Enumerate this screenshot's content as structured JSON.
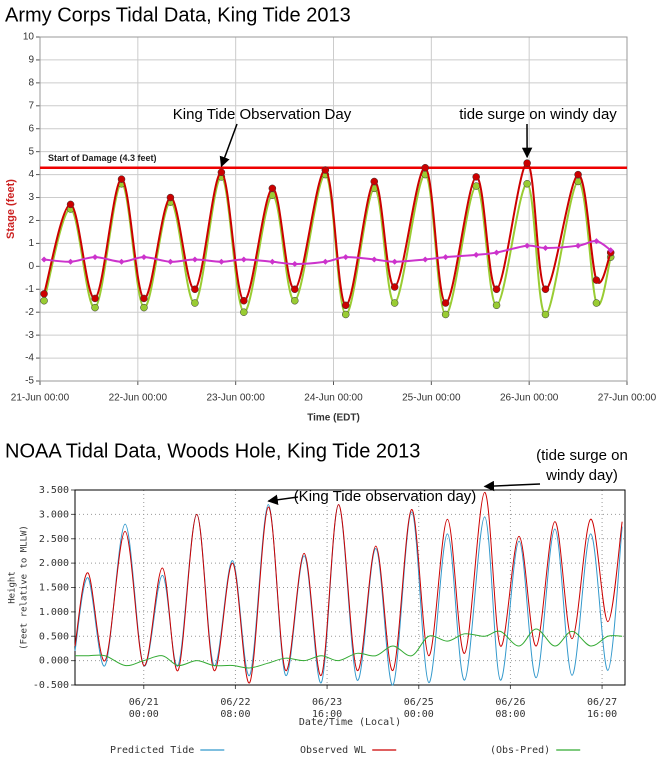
{
  "chart_data": [
    {
      "type": "line",
      "title": "Army Corps Tidal Data, King Tide 2013",
      "xlabel": "Time (EDT)",
      "ylabel": [
        "Stage (feet)"
      ],
      "x": [
        "21-Jun 01:00",
        "21-Jun 07:30",
        "21-Jun 13:30",
        "21-Jun 20:00",
        "22-Jun 01:30",
        "22-Jun 08:00",
        "22-Jun 14:00",
        "22-Jun 20:30",
        "23-Jun 02:00",
        "23-Jun 09:00",
        "23-Jun 14:30",
        "23-Jun 22:00",
        "24-Jun 03:00",
        "24-Jun 10:00",
        "24-Jun 15:00",
        "24-Jun 22:30",
        "25-Jun 03:30",
        "25-Jun 11:00",
        "25-Jun 16:00",
        "25-Jun 23:30",
        "26-Jun 04:00",
        "26-Jun 12:00",
        "26-Jun 16:30",
        "26-Jun 20:00"
      ],
      "series": [
        {
          "color": "#99cc33",
          "marker": "circle",
          "values": [
            -1.5,
            2.5,
            -1.8,
            3.6,
            -1.8,
            2.8,
            -1.6,
            3.9,
            -2.0,
            3.1,
            -1.5,
            4.0,
            -2.1,
            3.4,
            -1.6,
            4.0,
            -2.1,
            3.5,
            -1.7,
            3.6,
            -2.1,
            3.7,
            -1.6,
            0.4
          ]
        },
        {
          "color": "#cc0000",
          "marker": "circle",
          "values": [
            -1.2,
            2.7,
            -1.4,
            3.8,
            -1.4,
            3.0,
            -1.0,
            4.1,
            -1.5,
            3.4,
            -1.0,
            4.2,
            -1.7,
            3.7,
            -0.9,
            4.3,
            -1.6,
            3.9,
            -1.0,
            4.5,
            -1.0,
            4.0,
            -0.6,
            0.6
          ]
        },
        {
          "color": "#cc33cc",
          "marker": "diamond",
          "values": [
            0.3,
            0.2,
            0.4,
            0.2,
            0.4,
            0.2,
            0.3,
            0.2,
            0.3,
            0.2,
            0.1,
            0.2,
            0.4,
            0.3,
            0.2,
            0.3,
            0.4,
            0.5,
            0.6,
            0.9,
            0.8,
            0.9,
            1.1,
            0.7
          ]
        }
      ],
      "xlim": [
        "21-Jun 00:00",
        "27-Jun 00:00"
      ],
      "xticks": [
        "21-Jun 00:00",
        "22-Jun 00:00",
        "23-Jun 00:00",
        "24-Jun 00:00",
        "25-Jun 00:00",
        "26-Jun 00:00",
        "27-Jun 00:00"
      ],
      "ylim": [
        -5,
        10
      ],
      "yticks": [
        -5,
        -4,
        -3,
        -2,
        -1,
        0,
        1,
        2,
        3,
        4,
        5,
        6,
        7,
        8,
        9,
        10
      ],
      "grid": true,
      "threshold": {
        "value": 4.3,
        "label": "Start of Damage (4.3  feet)",
        "color": "#ee0000"
      },
      "annotations": [
        {
          "text": [
            "King Tide Observation Day"
          ],
          "x": "22-Jun 20:30",
          "y": 4.1
        },
        {
          "text": [
            "tide surge on windy day"
          ],
          "x": "25-Jun 23:30",
          "y": 4.5
        }
      ]
    },
    {
      "type": "line",
      "title": "NOAA Tidal Data, Woods Hole, King Tide 2013",
      "xlabel": "Date/Time (Local)",
      "ylabel": [
        "Height",
        "(Feet relative to MLLW)"
      ],
      "x": [
        "06/20 00:00",
        "06/20 04:30",
        "06/20 10:30",
        "06/20 17:30",
        "06/21 00:00",
        "06/21 06:30",
        "06/21 12:00",
        "06/21 18:30",
        "06/22 00:30",
        "06/22 07:00",
        "06/22 13:00",
        "06/22 19:30",
        "06/23 01:30",
        "06/23 08:00",
        "06/23 14:00",
        "06/23 20:00",
        "06/24 02:30",
        "06/24 09:00",
        "06/24 15:00",
        "06/24 21:30",
        "06/25 03:30",
        "06/25 10:00",
        "06/25 16:00",
        "06/25 23:00",
        "06/26 04:30",
        "06/26 11:00",
        "06/26 17:00",
        "06/26 23:30",
        "06/27 05:30",
        "06/27 12:00",
        "06/27 18:00",
        "06/27 23:00"
      ],
      "series": [
        {
          "name": "Predicted Tide",
          "color": "#3399cc",
          "values": [
            0.2,
            1.7,
            -0.1,
            2.8,
            -0.1,
            1.75,
            -0.1,
            3.0,
            -0.1,
            2.05,
            -0.3,
            3.2,
            -0.3,
            2.15,
            -0.45,
            3.2,
            -0.4,
            2.3,
            -0.5,
            3.05,
            -0.45,
            2.6,
            -0.4,
            2.95,
            -0.4,
            2.45,
            -0.35,
            2.7,
            -0.3,
            2.6,
            -0.2,
            2.75
          ]
        },
        {
          "name": "Observed WL",
          "color": "#cc0000",
          "values": [
            0.3,
            1.8,
            0.0,
            2.65,
            -0.1,
            1.9,
            -0.2,
            3.0,
            -0.2,
            2.0,
            -0.45,
            3.15,
            -0.2,
            2.2,
            -0.3,
            3.2,
            -0.2,
            2.35,
            -0.2,
            3.1,
            0.1,
            2.9,
            0.15,
            3.45,
            0.3,
            2.55,
            0.3,
            2.85,
            0.45,
            2.9,
            0.8,
            2.85
          ]
        },
        {
          "name": "(Obs-Pred)",
          "color": "#33aa33",
          "values": [
            0.1,
            0.1,
            0.1,
            -0.1,
            0.0,
            0.1,
            -0.1,
            0.0,
            -0.1,
            -0.1,
            -0.15,
            -0.05,
            0.05,
            0.0,
            0.1,
            0.0,
            0.15,
            0.1,
            0.3,
            0.1,
            0.5,
            0.4,
            0.55,
            0.5,
            0.6,
            0.3,
            0.65,
            0.3,
            0.6,
            0.3,
            0.5,
            0.5
          ]
        }
      ],
      "xlim": [
        "06/20 00:00",
        "06/28 00:00"
      ],
      "xticks": [
        "06/21 00:00",
        "06/22 08:00",
        "06/23 16:00",
        "06/25 00:00",
        "06/26 08:00",
        "06/27 16:00"
      ],
      "ylim": [
        -0.5,
        3.5
      ],
      "yticks": [
        {
          "value": -0.5,
          "label": "-0.500"
        },
        {
          "value": 0,
          "label": "0.000"
        },
        {
          "value": 0.5,
          "label": "0.500"
        },
        {
          "value": 1,
          "label": "1.000"
        },
        {
          "value": 1.5,
          "label": "1.500"
        },
        {
          "value": 2,
          "label": "2.000"
        },
        {
          "value": 2.5,
          "label": "2.500"
        },
        {
          "value": 3,
          "label": "3.000"
        },
        {
          "value": 3.5,
          "label": "3.500"
        }
      ],
      "grid": true,
      "legend": "bottom",
      "annotations": [
        {
          "text": [
            "(King Tide observation day)"
          ],
          "x": "06/22 19:30",
          "y": 3.15
        },
        {
          "text": [
            "(tide surge on",
            "windy day)"
          ],
          "x": "06/25 23:00",
          "y": 3.45
        }
      ]
    }
  ]
}
